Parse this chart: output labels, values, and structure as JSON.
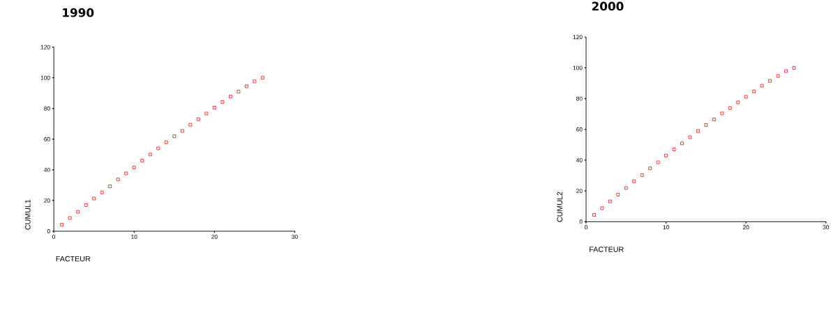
{
  "chart_data": [
    {
      "type": "scatter",
      "title": "1990",
      "xlabel": "FACTEUR",
      "ylabel": "CUMUL1",
      "color": "#ff0000",
      "marker": "square",
      "xlim": [
        0,
        30
      ],
      "ylim": [
        0,
        120
      ],
      "xticks": [
        0,
        10,
        20,
        30
      ],
      "yticks": [
        0,
        20,
        40,
        60,
        80,
        100,
        120
      ],
      "x": [
        1,
        2,
        3,
        4,
        5,
        6,
        7,
        8,
        9,
        10,
        11,
        12,
        13,
        14,
        15,
        16,
        17,
        18,
        19,
        20,
        21,
        22,
        23,
        24,
        25,
        26
      ],
      "values": [
        4.2,
        8.6,
        12.6,
        17.0,
        21.3,
        25.3,
        29.3,
        33.7,
        37.7,
        41.5,
        46.0,
        50.0,
        54.0,
        58.0,
        61.9,
        65.4,
        69.4,
        73.0,
        76.7,
        80.6,
        84.3,
        87.8,
        91.0,
        94.5,
        97.7,
        100.0
      ]
    },
    {
      "type": "scatter",
      "title": "2000",
      "xlabel": "FACTEUR",
      "ylabel": "CUMUL2",
      "color": "#ff0000",
      "marker": "square",
      "xlim": [
        0,
        30
      ],
      "ylim": [
        0,
        120
      ],
      "xticks": [
        0,
        10,
        20,
        30
      ],
      "yticks": [
        0,
        20,
        40,
        60,
        80,
        100,
        120
      ],
      "x": [
        1,
        2,
        3,
        4,
        5,
        6,
        7,
        8,
        9,
        10,
        11,
        12,
        13,
        14,
        15,
        16,
        17,
        18,
        19,
        20,
        21,
        22,
        23,
        24,
        25,
        26
      ],
      "values": [
        4.4,
        8.8,
        13.2,
        17.6,
        21.9,
        26.3,
        30.3,
        34.7,
        38.6,
        43.0,
        47.0,
        50.9,
        54.9,
        58.9,
        62.9,
        66.5,
        70.4,
        73.9,
        77.6,
        81.2,
        84.7,
        88.4,
        91.5,
        94.7,
        97.9,
        100.0
      ]
    }
  ]
}
